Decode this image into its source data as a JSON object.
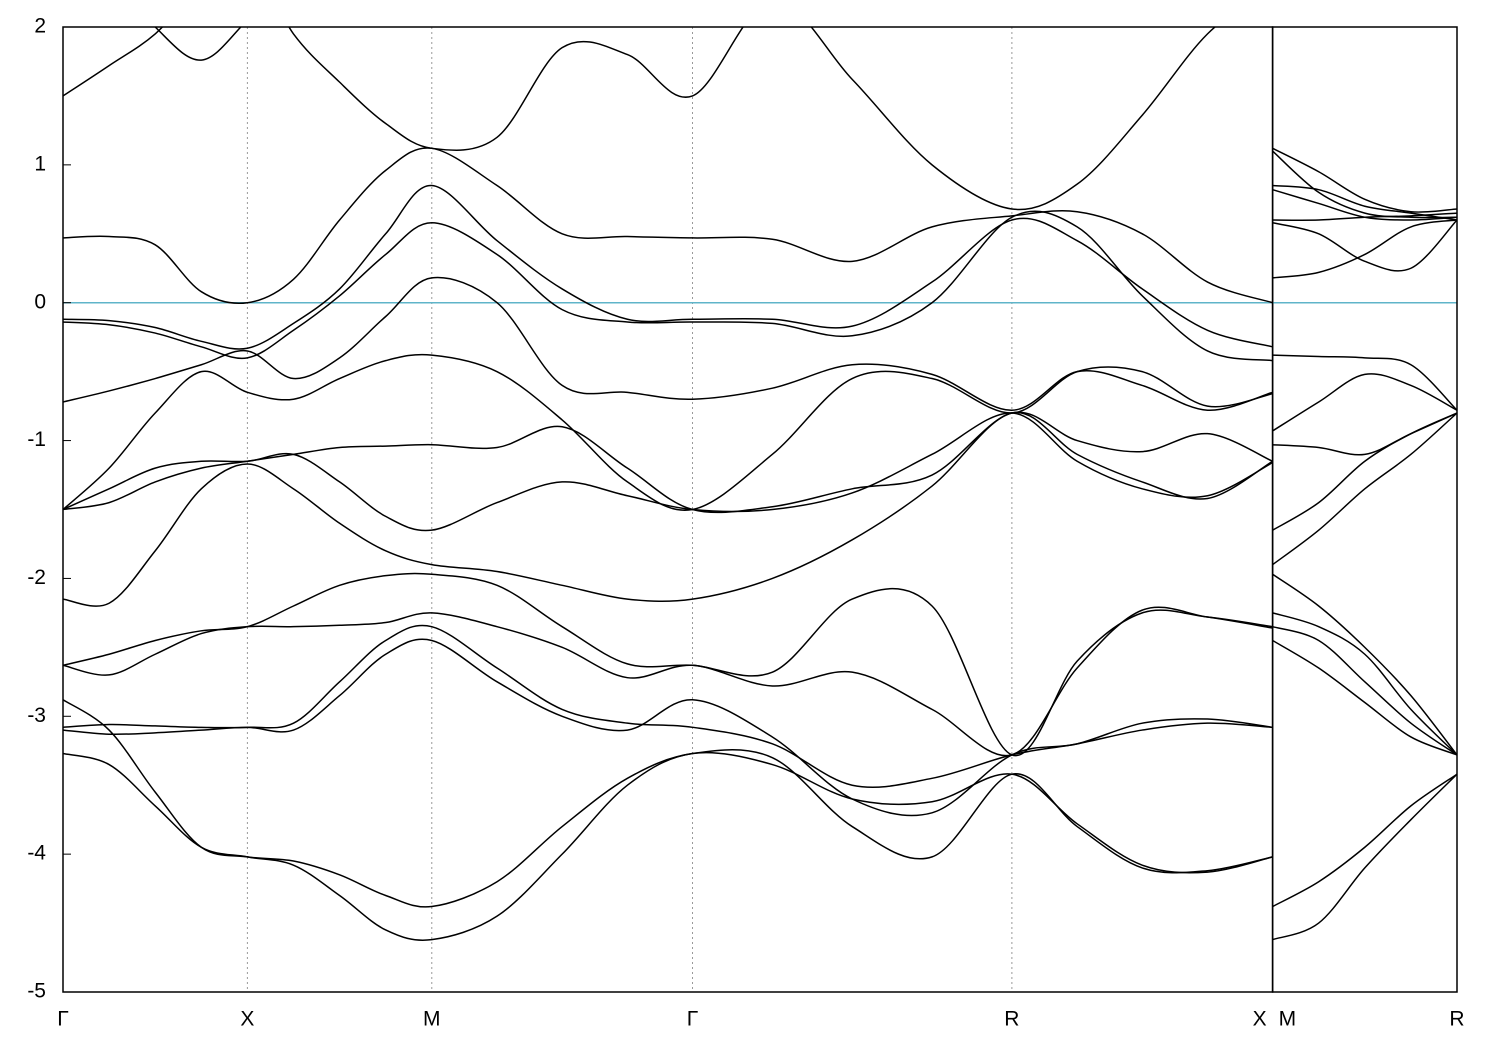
{
  "chart_data": [
    {
      "type": "line",
      "x": [
        0,
        0.25,
        0.5,
        0.75,
        1,
        1.25,
        1.5,
        1.75,
        2,
        2.354,
        2.707,
        3.061,
        3.414,
        3.847,
        4.28,
        4.713,
        5.146,
        5.5,
        5.853,
        6.207,
        6.56
      ],
      "xlim": [
        0,
        6.56
      ],
      "xticks": [
        {
          "value": 0,
          "label": "Γ"
        },
        {
          "value": 1,
          "label": "X"
        },
        {
          "value": 2,
          "label": "M"
        },
        {
          "value": 3.414,
          "label": "Γ"
        },
        {
          "value": 5.146,
          "label": "R"
        },
        {
          "value": 6.56,
          "label": "X"
        }
      ],
      "xgrid": true,
      "ylim": [
        -5,
        2
      ],
      "yticks": [
        -5,
        -4,
        -3,
        -2,
        -1,
        0,
        1,
        2
      ],
      "fermi_level": 0,
      "fermi_color": "#5fb4c9",
      "series": [
        {
          "color": "#000000",
          "values": [
            1.5,
            1.72,
            1.95,
            2.3,
            2.5,
            1.95,
            1.6,
            1.3,
            1.12,
            1.2,
            1.85,
            1.8,
            1.5,
            2.2,
            1.62,
            1.0,
            0.68,
            0.86,
            1.36,
            1.95,
            2.3
          ]
        },
        {
          "color": "#000000",
          "values": [
            null,
            2.4,
            2.0,
            1.76,
            2.05,
            2.4,
            null,
            null,
            null,
            null,
            null,
            null,
            null,
            null,
            null,
            null,
            null,
            null,
            null,
            null,
            null
          ]
        },
        {
          "color": "#000000",
          "values": [
            0.47,
            0.48,
            0.42,
            0.08,
            0.0,
            0.17,
            0.6,
            0.96,
            1.12,
            0.85,
            0.5,
            0.48,
            0.47,
            0.46,
            0.3,
            0.55,
            0.63,
            0.66,
            0.5,
            0.15,
            0.0
          ]
        },
        {
          "color": "#000000",
          "values": [
            -0.12,
            -0.13,
            -0.18,
            -0.28,
            -0.33,
            -0.15,
            0.1,
            0.5,
            0.85,
            0.45,
            0.1,
            -0.12,
            -0.12,
            -0.12,
            -0.17,
            0.15,
            0.6,
            0.45,
            0.1,
            -0.2,
            -0.32
          ]
        },
        {
          "color": "#000000",
          "values": [
            -0.14,
            -0.16,
            -0.22,
            -0.32,
            -0.4,
            -0.2,
            0.05,
            0.35,
            0.58,
            0.35,
            -0.05,
            -0.14,
            -0.14,
            -0.15,
            -0.24,
            0.0,
            0.62,
            0.55,
            0.05,
            -0.35,
            -0.42
          ]
        },
        {
          "color": "#000000",
          "values": [
            -0.72,
            -0.64,
            -0.55,
            -0.45,
            -0.35,
            -0.55,
            -0.4,
            -0.1,
            0.18,
            0.0,
            -0.6,
            -0.65,
            -0.7,
            -0.62,
            -0.45,
            -0.52,
            -0.78,
            -0.5,
            -0.6,
            -0.78,
            -0.65
          ]
        },
        {
          "color": "#000000",
          "values": [
            -1.5,
            -1.2,
            -0.8,
            -0.5,
            -0.65,
            -0.7,
            -0.55,
            -0.42,
            -0.38,
            -0.5,
            -0.85,
            -1.3,
            -1.5,
            -1.1,
            -0.55,
            -0.55,
            -0.8,
            -0.5,
            -0.5,
            -0.75,
            -0.66
          ]
        },
        {
          "color": "#000000",
          "values": [
            -1.5,
            -1.45,
            -1.3,
            -1.2,
            -1.15,
            -1.1,
            -1.05,
            -1.04,
            -1.03,
            -1.05,
            -0.9,
            -1.2,
            -1.5,
            -1.48,
            -1.35,
            -1.25,
            -0.8,
            -1.0,
            -1.08,
            -0.95,
            -1.15
          ]
        },
        {
          "color": "#000000",
          "values": [
            -1.5,
            -1.35,
            -1.2,
            -1.15,
            -1.15,
            -1.1,
            -1.3,
            -1.55,
            -1.65,
            -1.45,
            -1.3,
            -1.4,
            -1.5,
            -1.5,
            -1.38,
            -1.1,
            -0.8,
            -1.15,
            -1.35,
            -1.4,
            -1.16
          ]
        },
        {
          "color": "#000000",
          "values": [
            -2.15,
            -2.18,
            -1.8,
            -1.35,
            -1.17,
            -1.35,
            -1.6,
            -1.8,
            -1.9,
            -1.95,
            -2.05,
            -2.15,
            -2.15,
            -2.0,
            -1.72,
            -1.33,
            -0.8,
            -1.1,
            -1.3,
            -1.42,
            -1.15
          ]
        },
        {
          "color": "#000000",
          "values": [
            -2.63,
            -2.55,
            -2.45,
            -2.38,
            -2.35,
            -2.2,
            -2.05,
            -1.98,
            -1.97,
            -2.05,
            -2.35,
            -2.62,
            -2.63,
            -2.68,
            -2.15,
            -2.2,
            -3.28,
            -2.6,
            -2.25,
            -2.28,
            -2.35
          ]
        },
        {
          "color": "#000000",
          "values": [
            -2.63,
            -2.7,
            -2.55,
            -2.4,
            -2.35,
            -2.35,
            -2.34,
            -2.32,
            -2.25,
            -2.35,
            -2.5,
            -2.72,
            -2.63,
            -2.78,
            -2.68,
            -2.95,
            -3.28,
            -2.65,
            -2.23,
            -2.28,
            -2.36
          ]
        },
        {
          "color": "#000000",
          "values": [
            -2.88,
            -3.1,
            -3.55,
            -3.95,
            -4.02,
            -4.05,
            -4.15,
            -4.3,
            -4.38,
            -4.2,
            -3.8,
            -3.45,
            -3.27,
            -3.3,
            -3.8,
            -4.02,
            -3.42,
            -3.8,
            -4.1,
            -4.12,
            -4.02
          ]
        },
        {
          "color": "#000000",
          "values": [
            -3.27,
            -3.35,
            -3.65,
            -3.95,
            -4.02,
            -4.08,
            -4.3,
            -4.55,
            -4.62,
            -4.45,
            -4.0,
            -3.5,
            -3.27,
            -3.35,
            -3.6,
            -3.62,
            -3.42,
            -3.78,
            -4.08,
            -4.13,
            -4.02
          ]
        },
        {
          "color": "#000000",
          "values": [
            -3.08,
            -3.06,
            -3.07,
            -3.08,
            -3.08,
            -3.05,
            -2.75,
            -2.45,
            -2.35,
            -2.65,
            -2.95,
            -3.05,
            -3.08,
            -3.2,
            -3.5,
            -3.45,
            -3.28,
            -3.2,
            -3.1,
            -3.05,
            -3.08
          ]
        },
        {
          "color": "#000000",
          "values": [
            -3.1,
            -3.13,
            -3.12,
            -3.1,
            -3.08,
            -3.1,
            -2.85,
            -2.55,
            -2.45,
            -2.75,
            -3.0,
            -3.1,
            -2.88,
            -3.15,
            -3.6,
            -3.7,
            -3.28,
            -3.2,
            -3.05,
            -3.02,
            -3.08
          ]
        }
      ]
    },
    {
      "type": "line",
      "x": [
        6.56,
        6.81,
        7.06,
        7.31,
        7.56
      ],
      "xlim": [
        6.56,
        7.56
      ],
      "xticks": [
        {
          "value": 6.56,
          "label": "M"
        },
        {
          "value": 7.56,
          "label": "R"
        }
      ],
      "xgrid": true,
      "ylim": [
        -5,
        2
      ],
      "fermi_level": 0,
      "fermi_color": "#5fb4c9",
      "series": [
        {
          "color": "#000000",
          "values": [
            1.12,
            0.95,
            0.75,
            0.66,
            0.68
          ]
        },
        {
          "color": "#000000",
          "values": [
            1.1,
            0.8,
            0.65,
            0.62,
            0.62
          ]
        },
        {
          "color": "#000000",
          "values": [
            0.85,
            0.82,
            0.7,
            0.65,
            0.6
          ]
        },
        {
          "color": "#000000",
          "values": [
            0.82,
            0.72,
            0.62,
            0.6,
            0.62
          ]
        },
        {
          "color": "#000000",
          "values": [
            0.6,
            0.6,
            0.62,
            0.63,
            0.65
          ]
        },
        {
          "color": "#000000",
          "values": [
            0.58,
            0.5,
            0.3,
            0.25,
            0.6
          ]
        },
        {
          "color": "#000000",
          "values": [
            0.18,
            0.22,
            0.35,
            0.55,
            0.6
          ]
        },
        {
          "color": "#000000",
          "values": [
            -0.38,
            -0.39,
            -0.4,
            -0.45,
            -0.78
          ]
        },
        {
          "color": "#000000",
          "values": [
            -0.93,
            -0.72,
            -0.52,
            -0.6,
            -0.78
          ]
        },
        {
          "color": "#000000",
          "values": [
            -1.03,
            -1.05,
            -1.1,
            -0.95,
            -0.8
          ]
        },
        {
          "color": "#000000",
          "values": [
            -1.65,
            -1.45,
            -1.15,
            -0.95,
            -0.8
          ]
        },
        {
          "color": "#000000",
          "values": [
            -1.9,
            -1.65,
            -1.35,
            -1.1,
            -0.8
          ]
        },
        {
          "color": "#000000",
          "values": [
            -1.97,
            -2.2,
            -2.5,
            -2.85,
            -3.28
          ]
        },
        {
          "color": "#000000",
          "values": [
            -2.25,
            -2.35,
            -2.55,
            -2.95,
            -3.28
          ]
        },
        {
          "color": "#000000",
          "values": [
            -2.35,
            -2.45,
            -2.75,
            -3.05,
            -3.28
          ]
        },
        {
          "color": "#000000",
          "values": [
            -2.45,
            -2.65,
            -2.9,
            -3.15,
            -3.28
          ]
        },
        {
          "color": "#000000",
          "values": [
            -4.38,
            -4.2,
            -3.95,
            -3.65,
            -3.42
          ]
        },
        {
          "color": "#000000",
          "values": [
            -4.62,
            -4.5,
            -4.1,
            -3.75,
            -3.42
          ]
        }
      ]
    }
  ]
}
